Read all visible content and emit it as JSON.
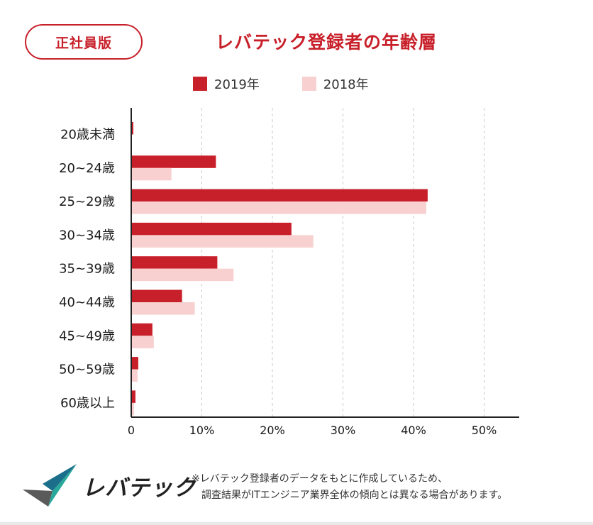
{
  "badge": "正社員版",
  "title": "レバテック登録者の年齢層",
  "colors": {
    "accent": "#c8202a",
    "series_2019": "#c8202a",
    "series_2018": "#f8d0d0"
  },
  "chart_data": {
    "type": "bar",
    "orientation": "horizontal",
    "title": "レバテック登録者の年齢層",
    "categories": [
      "20歳未満",
      "20~24歳",
      "25~29歳",
      "30~34歳",
      "35~39歳",
      "40~44歳",
      "45~49歳",
      "50~59歳",
      "60歳以上"
    ],
    "series": [
      {
        "name": "2019年",
        "values": [
          0.3,
          12.0,
          42.0,
          22.7,
          12.2,
          7.2,
          3.0,
          1.0,
          0.6
        ]
      },
      {
        "name": "2018年",
        "values": [
          0.0,
          5.7,
          41.8,
          25.8,
          14.5,
          9.0,
          3.2,
          0.9,
          0.4
        ]
      }
    ],
    "xlim": [
      0,
      50
    ],
    "xticks": [
      "0",
      "10%",
      "20%",
      "30%",
      "40%",
      "50%"
    ],
    "xtick_values": [
      0,
      10,
      20,
      30,
      40,
      50
    ],
    "grid": true,
    "legend_position": "top"
  },
  "footer": {
    "logo_text": "レバテック",
    "note_line1": "※レバテック登録者のデータをもとに作成しているため、",
    "note_line2": "調査結果がITエンジニア業界全体の傾向とは異なる場合があります。"
  }
}
